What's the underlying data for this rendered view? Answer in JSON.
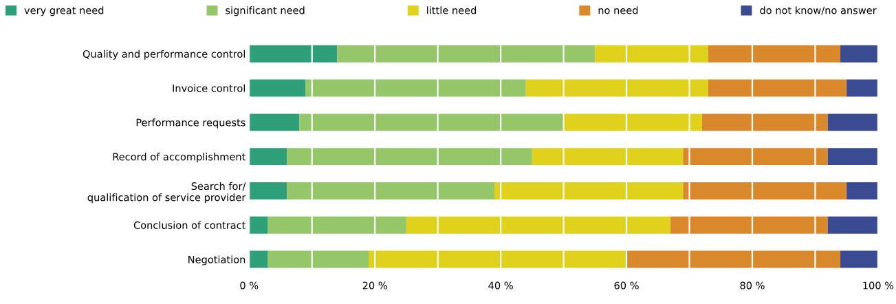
{
  "chart_data": {
    "type": "bar",
    "orientation": "horizontal",
    "stacked": true,
    "categories": [
      "Quality and performance control",
      "Invoice control",
      "Performance requests",
      "Record of accomplishment",
      "Search for/\nqualification of service provider",
      "Conclusion of contract",
      "Negotiation"
    ],
    "series": [
      {
        "name": "very great need",
        "color": "#2e9f78",
        "values": [
          14,
          9,
          8,
          6,
          6,
          3,
          3
        ]
      },
      {
        "name": "significant need",
        "color": "#96c66a",
        "values": [
          41,
          35,
          42,
          39,
          33,
          22,
          16
        ]
      },
      {
        "name": "little need",
        "color": "#e0d11d",
        "values": [
          18,
          29,
          22,
          24,
          30,
          42,
          41
        ]
      },
      {
        "name": "no need",
        "color": "#d9892b",
        "values": [
          21,
          22,
          20,
          23,
          26,
          25,
          34
        ]
      },
      {
        "name": "do not know/no answer",
        "color": "#3b4b91",
        "values": [
          6,
          5,
          8,
          8,
          5,
          8,
          6
        ]
      }
    ],
    "xlim": [
      0,
      100
    ],
    "xticks": [
      {
        "value": 0,
        "label": "0 %"
      },
      {
        "value": 10,
        "label": null
      },
      {
        "value": 20,
        "label": "20 %"
      },
      {
        "value": 30,
        "label": null
      },
      {
        "value": 40,
        "label": "40 %"
      },
      {
        "value": 50,
        "label": null
      },
      {
        "value": 60,
        "label": "60 %"
      },
      {
        "value": 70,
        "label": null
      },
      {
        "value": 80,
        "label": "80 %"
      },
      {
        "value": 90,
        "label": null
      },
      {
        "value": 100,
        "label": "100 %"
      }
    ],
    "grid": "x",
    "legend": "top"
  }
}
